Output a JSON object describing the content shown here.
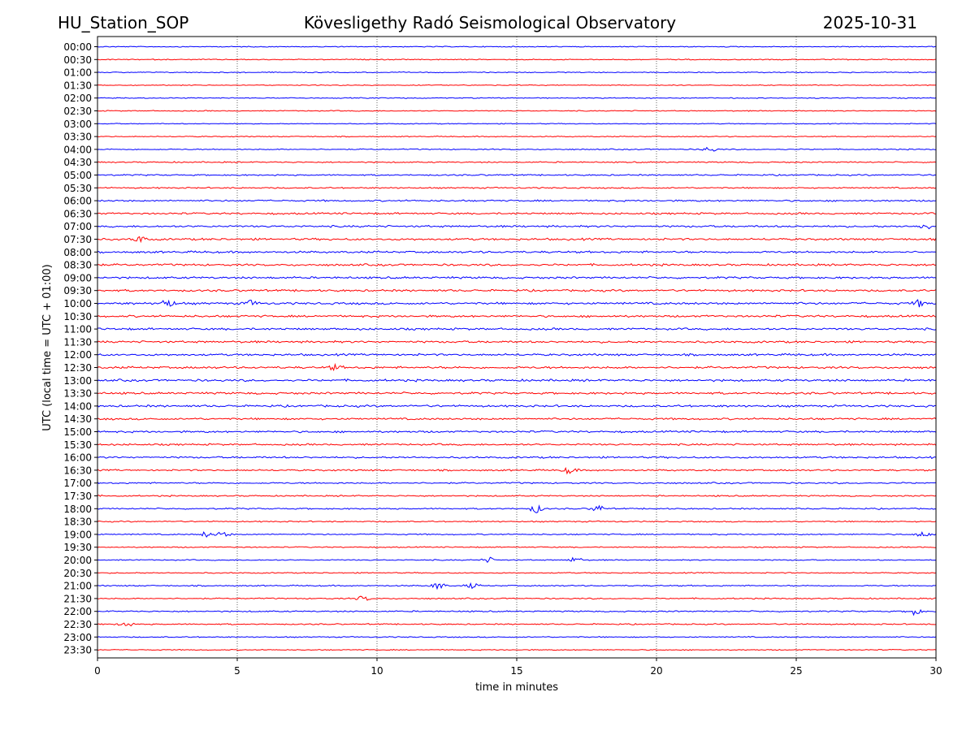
{
  "header": {
    "station": "HU_Station_SOP",
    "observatory": "Kövesligethy Radó Seismological Observatory",
    "date": "2025-10-31"
  },
  "chart_data": {
    "type": "line",
    "title": "Kövesligethy Radó Seismological Observatory",
    "xlabel": "time in minutes",
    "ylabel": "UTC (local time = UTC + 01:00)",
    "xlim": [
      0,
      30
    ],
    "xticks": [
      0,
      5,
      10,
      15,
      20,
      25,
      30
    ],
    "xtick_labels": [
      "0",
      "5",
      "10",
      "15",
      "20",
      "25",
      "30"
    ],
    "grid": "vertical dotted at x ticks",
    "row_labels": [
      "00:00",
      "00:30",
      "01:00",
      "01:30",
      "02:00",
      "02:30",
      "03:00",
      "03:30",
      "04:00",
      "04:30",
      "05:00",
      "05:30",
      "06:00",
      "06:30",
      "07:00",
      "07:30",
      "08:00",
      "08:30",
      "09:00",
      "09:30",
      "10:00",
      "10:30",
      "11:00",
      "11:30",
      "12:00",
      "12:30",
      "13:00",
      "13:30",
      "14:00",
      "14:30",
      "15:00",
      "15:30",
      "16:00",
      "16:30",
      "17:00",
      "17:30",
      "18:00",
      "18:30",
      "19:00",
      "19:30",
      "20:00",
      "20:30",
      "21:00",
      "21:30",
      "22:00",
      "22:30",
      "23:00",
      "23:30"
    ],
    "row_colors": [
      "#0000ff",
      "#ff0000"
    ],
    "row_noise_level": [
      0.35,
      0.35,
      0.35,
      0.3,
      0.35,
      0.35,
      0.3,
      0.35,
      0.4,
      0.45,
      0.5,
      0.5,
      0.6,
      0.65,
      0.7,
      0.75,
      0.75,
      0.75,
      0.75,
      0.75,
      0.8,
      0.75,
      0.75,
      0.75,
      0.75,
      0.8,
      0.8,
      0.75,
      0.75,
      0.7,
      0.7,
      0.65,
      0.65,
      0.6,
      0.55,
      0.5,
      0.5,
      0.45,
      0.45,
      0.4,
      0.4,
      0.4,
      0.45,
      0.45,
      0.5,
      0.45,
      0.4,
      0.35
    ],
    "events": [
      {
        "row": "04:00",
        "minute": 21.9,
        "amplitude": 1.6
      },
      {
        "row": "07:00",
        "minute": 29.6,
        "amplitude": 1.6
      },
      {
        "row": "07:30",
        "minute": 1.5,
        "amplitude": 1.8
      },
      {
        "row": "10:00",
        "minute": 2.5,
        "amplitude": 2.4
      },
      {
        "row": "10:00",
        "minute": 5.5,
        "amplitude": 1.5
      },
      {
        "row": "10:00",
        "minute": 29.4,
        "amplitude": 1.8
      },
      {
        "row": "12:30",
        "minute": 8.5,
        "amplitude": 1.4
      },
      {
        "row": "16:30",
        "minute": 16.9,
        "amplitude": 2.0
      },
      {
        "row": "18:00",
        "minute": 15.7,
        "amplitude": 2.2
      },
      {
        "row": "18:00",
        "minute": 17.9,
        "amplitude": 2.0
      },
      {
        "row": "19:00",
        "minute": 3.9,
        "amplitude": 1.5
      },
      {
        "row": "19:00",
        "minute": 4.5,
        "amplitude": 1.6
      },
      {
        "row": "19:00",
        "minute": 29.5,
        "amplitude": 1.6
      },
      {
        "row": "20:00",
        "minute": 14.0,
        "amplitude": 1.5
      },
      {
        "row": "20:00",
        "minute": 17.1,
        "amplitude": 1.6
      },
      {
        "row": "21:00",
        "minute": 12.2,
        "amplitude": 2.2
      },
      {
        "row": "21:00",
        "minute": 13.4,
        "amplitude": 1.4
      },
      {
        "row": "21:30",
        "minute": 9.5,
        "amplitude": 1.4
      },
      {
        "row": "22:00",
        "minute": 29.2,
        "amplitude": 2.0
      },
      {
        "row": "22:30",
        "minute": 1.0,
        "amplitude": 1.5
      }
    ]
  }
}
